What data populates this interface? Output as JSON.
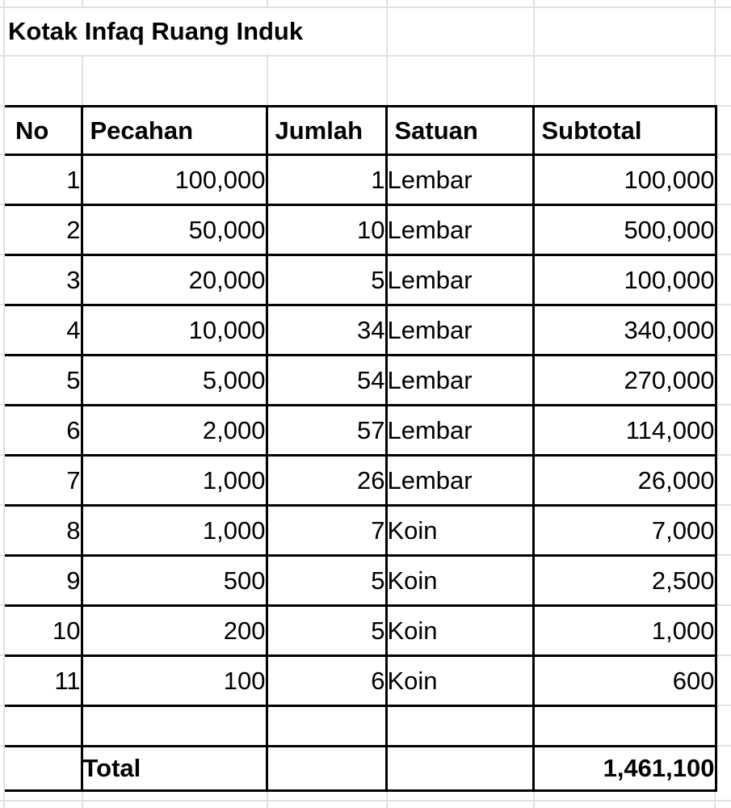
{
  "sheet_title": "Kotak Infaq Ruang Induk",
  "table": {
    "headers": [
      "No",
      "Pecahan",
      "Jumlah",
      "Satuan",
      "Subtotal"
    ],
    "rows": [
      {
        "no": "1",
        "pecahan": "100,000",
        "jumlah": "1",
        "satuan": "Lembar",
        "subtotal": "100,000"
      },
      {
        "no": "2",
        "pecahan": "50,000",
        "jumlah": "10",
        "satuan": "Lembar",
        "subtotal": "500,000"
      },
      {
        "no": "3",
        "pecahan": "20,000",
        "jumlah": "5",
        "satuan": "Lembar",
        "subtotal": "100,000"
      },
      {
        "no": "4",
        "pecahan": "10,000",
        "jumlah": "34",
        "satuan": "Lembar",
        "subtotal": "340,000"
      },
      {
        "no": "5",
        "pecahan": "5,000",
        "jumlah": "54",
        "satuan": "Lembar",
        "subtotal": "270,000"
      },
      {
        "no": "6",
        "pecahan": "2,000",
        "jumlah": "57",
        "satuan": "Lembar",
        "subtotal": "114,000"
      },
      {
        "no": "7",
        "pecahan": "1,000",
        "jumlah": "26",
        "satuan": "Lembar",
        "subtotal": "26,000"
      },
      {
        "no": "8",
        "pecahan": "1,000",
        "jumlah": "7",
        "satuan": "Koin",
        "subtotal": "7,000"
      },
      {
        "no": "9",
        "pecahan": "500",
        "jumlah": "5",
        "satuan": "Koin",
        "subtotal": "2,500"
      },
      {
        "no": "10",
        "pecahan": "200",
        "jumlah": "5",
        "satuan": "Koin",
        "subtotal": "1,000"
      },
      {
        "no": "11",
        "pecahan": "100",
        "jumlah": "6",
        "satuan": "Koin",
        "subtotal": "600"
      }
    ],
    "total_label": "Total",
    "total_value": "1,461,100"
  },
  "colors": {
    "border": "#000000",
    "gridline": "#e2e2e2",
    "background": "#ffffff",
    "text": "#000000"
  }
}
